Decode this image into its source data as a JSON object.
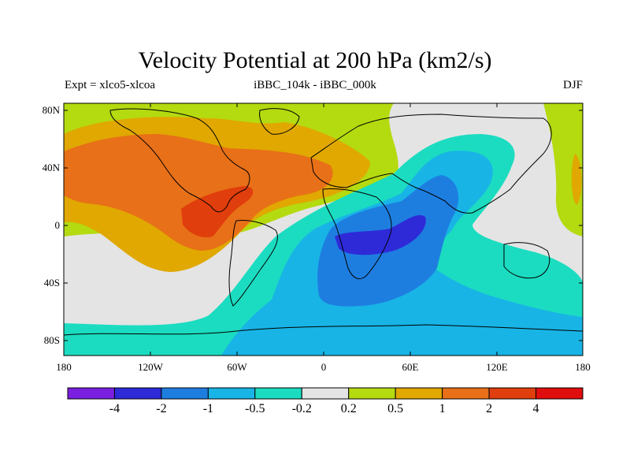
{
  "title": "Velocity Potential at 200 hPa (km2/s)",
  "left_label": "Expt = xlco5-xlcoa",
  "center_label": "iBBC_104k - iBBC_000k",
  "right_label": "DJF",
  "y_ticks": [
    "80N",
    "40N",
    "0",
    "40S",
    "80S"
  ],
  "x_ticks": [
    "180",
    "120W",
    "60W",
    "0",
    "60E",
    "120E",
    "180"
  ],
  "colorbar": {
    "colors": [
      "#7a1fe0",
      "#2e2ad8",
      "#1e7ee0",
      "#18b4e6",
      "#1bdcc0",
      "#e4e4e4",
      "#b4da10",
      "#e0a800",
      "#e87018",
      "#e03e0c",
      "#e00e0e"
    ],
    "labels": [
      "-4",
      "-2",
      "-1",
      "-0.5",
      "-0.2",
      "0.2",
      "0.5",
      "1",
      "2",
      "4"
    ]
  }
}
